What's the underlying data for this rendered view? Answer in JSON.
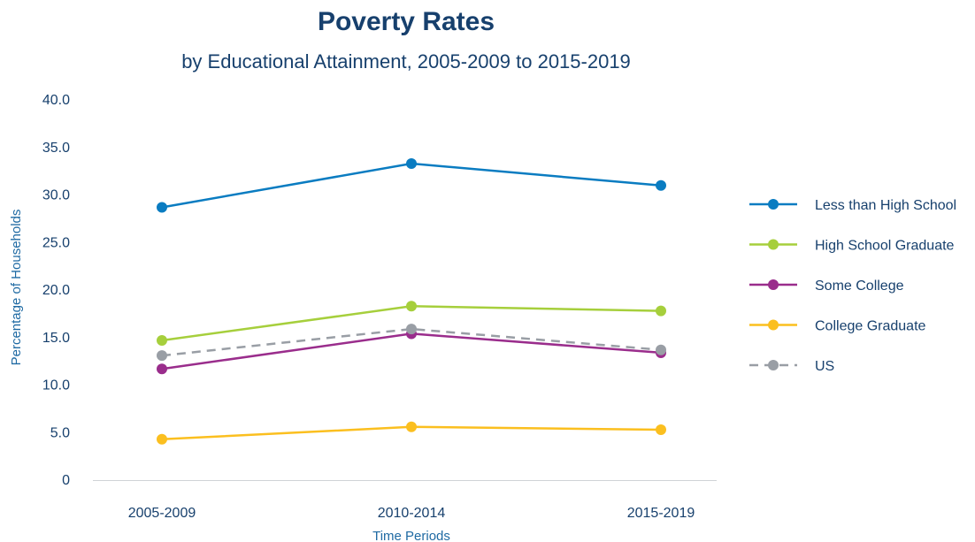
{
  "chart_data": {
    "type": "line",
    "title": "Poverty Rates",
    "subtitle": "by Educational Attainment, 2005-2009 to 2015-2019",
    "xlabel": "Time Periods",
    "ylabel": "Percentage of Households",
    "categories": [
      "2005-2009",
      "2010-2014",
      "2015-2019"
    ],
    "ylim": [
      0,
      40
    ],
    "yticks": [
      "0",
      "5.0",
      "10.0",
      "15.0",
      "20.0",
      "25.0",
      "30.0",
      "35.0",
      "40.0"
    ],
    "grid": false,
    "legend_position": "right",
    "series": [
      {
        "name": "Less than High School",
        "color": "#0a7cc1",
        "dashed": false,
        "values": [
          28.7,
          33.3,
          31.0
        ]
      },
      {
        "name": "High School Graduate",
        "color": "#a6cf3c",
        "dashed": false,
        "values": [
          14.7,
          18.3,
          17.8
        ]
      },
      {
        "name": "Some College",
        "color": "#9a2d8c",
        "dashed": false,
        "values": [
          11.7,
          15.4,
          13.4
        ]
      },
      {
        "name": "College Graduate",
        "color": "#fbbf1f",
        "dashed": false,
        "values": [
          4.3,
          5.6,
          5.3
        ]
      },
      {
        "name": "US",
        "color": "#999ea5",
        "dashed": true,
        "values": [
          13.1,
          15.9,
          13.7
        ]
      }
    ]
  }
}
